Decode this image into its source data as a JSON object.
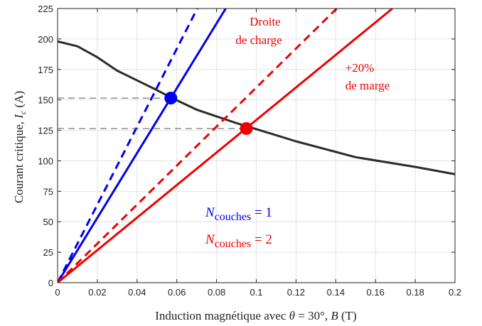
{
  "chart_data": {
    "type": "line",
    "xlabel_prefix": "Induction magnétique avec ",
    "xlabel_theta": "θ",
    "xlabel_mid": " = 30°, ",
    "xlabel_B": "B",
    "xlabel_unit": " (T)",
    "ylabel_prefix": "Courant critique, ",
    "ylabel_I": "I",
    "ylabel_sub": "c",
    "ylabel_unit": " (A)",
    "xlim": [
      0,
      0.2
    ],
    "ylim": [
      0,
      225
    ],
    "xticks": [
      0,
      0.02,
      0.04,
      0.06,
      0.08,
      0.1,
      0.12,
      0.14,
      0.16,
      0.18,
      0.2
    ],
    "xtick_labels": [
      "0",
      "0.02",
      "0.04",
      "0.06",
      "0.08",
      "0.1",
      "0.12",
      "0.14",
      "0.16",
      "0.18",
      "0.2"
    ],
    "yticks": [
      0,
      25,
      50,
      75,
      100,
      125,
      150,
      175,
      200,
      225
    ],
    "ytick_labels": [
      "0",
      "25",
      "50",
      "75",
      "100",
      "125",
      "150",
      "175",
      "200",
      "225"
    ],
    "grid": true,
    "colors": {
      "critical": "#2b2b2b",
      "blue": "#0000ee",
      "red": "#ee0000",
      "guide": "#555555"
    },
    "series": [
      {
        "role": "critical-current",
        "color": "#2b2b2b",
        "style": "solid",
        "x": [
          0,
          0.01,
          0.02,
          0.03,
          0.04,
          0.05,
          0.057,
          0.07,
          0.09,
          0.1,
          0.12,
          0.15,
          0.18,
          0.2
        ],
        "y": [
          198,
          194,
          185,
          174,
          166,
          158,
          152,
          142,
          131,
          126,
          116,
          103,
          95,
          89
        ]
      },
      {
        "role": "load-line-1-layer",
        "color": "#0000ee",
        "style": "solid",
        "x": [
          0,
          0.0846
        ],
        "y": [
          0,
          225
        ]
      },
      {
        "role": "load-line-1-layer-margin",
        "color": "#0000ee",
        "style": "dashed",
        "x": [
          0,
          0.0703
        ],
        "y": [
          0,
          225
        ]
      },
      {
        "role": "load-line-2-layers",
        "color": "#ee0000",
        "style": "solid",
        "x": [
          0,
          0.1685
        ],
        "y": [
          0,
          225
        ]
      },
      {
        "role": "load-line-2-layers-margin",
        "color": "#ee0000",
        "style": "dashed",
        "x": [
          0,
          0.1405
        ],
        "y": [
          0,
          225
        ]
      }
    ],
    "intersections": [
      {
        "x": 0.057,
        "y": 151.5,
        "color": "#0000ee"
      },
      {
        "x": 0.095,
        "y": 126.5,
        "color": "#ee0000"
      }
    ],
    "annotations": {
      "load_line_1": "Droite",
      "load_line_2": "de charge",
      "margin_1": "+20%",
      "margin_2": "de marge",
      "n1_symbol": "N",
      "n1_sub": "couches",
      "n1_eq": " = 1",
      "n2_symbol": "N",
      "n2_sub": "couches",
      "n2_eq": " = 2"
    }
  }
}
